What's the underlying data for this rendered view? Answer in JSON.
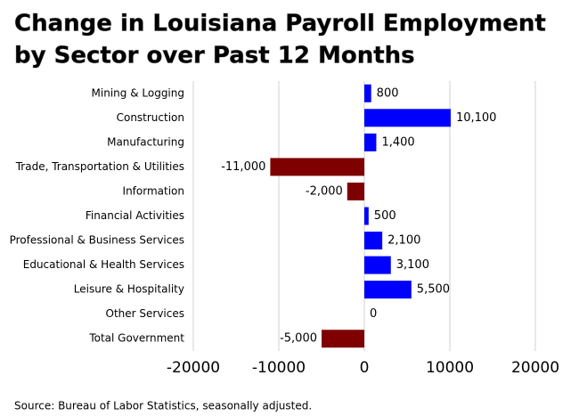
{
  "chart_data": {
    "type": "bar",
    "orientation": "horizontal",
    "title_lines": [
      "Change in Louisiana Payroll Employment",
      "by Sector over Past 12 Months"
    ],
    "categories": [
      "Mining & Logging",
      "Construction",
      "Manufacturing",
      "Trade, Transportation & Utilities",
      "Information",
      "Financial Activities",
      "Professional & Business Services",
      "Educational & Health Services",
      "Leisure & Hospitality",
      "Other Services",
      "Total Government"
    ],
    "values": [
      800,
      10100,
      1400,
      -11000,
      -2000,
      500,
      2100,
      3100,
      5500,
      0,
      -5000
    ],
    "value_labels": [
      "800",
      "10,100",
      "1,400",
      "-11,000",
      "-2,000",
      "500",
      "2,100",
      "3,100",
      "5,500",
      "0",
      "-5,000"
    ],
    "positive_color": "#0000ff",
    "negative_color": "#7f0000",
    "xlim": [
      -20000,
      20000
    ],
    "xticks": [
      -20000,
      -10000,
      0,
      10000,
      20000
    ],
    "grid": true,
    "source": "Source: Bureau of Labor Statistics, seasonally adjusted."
  }
}
